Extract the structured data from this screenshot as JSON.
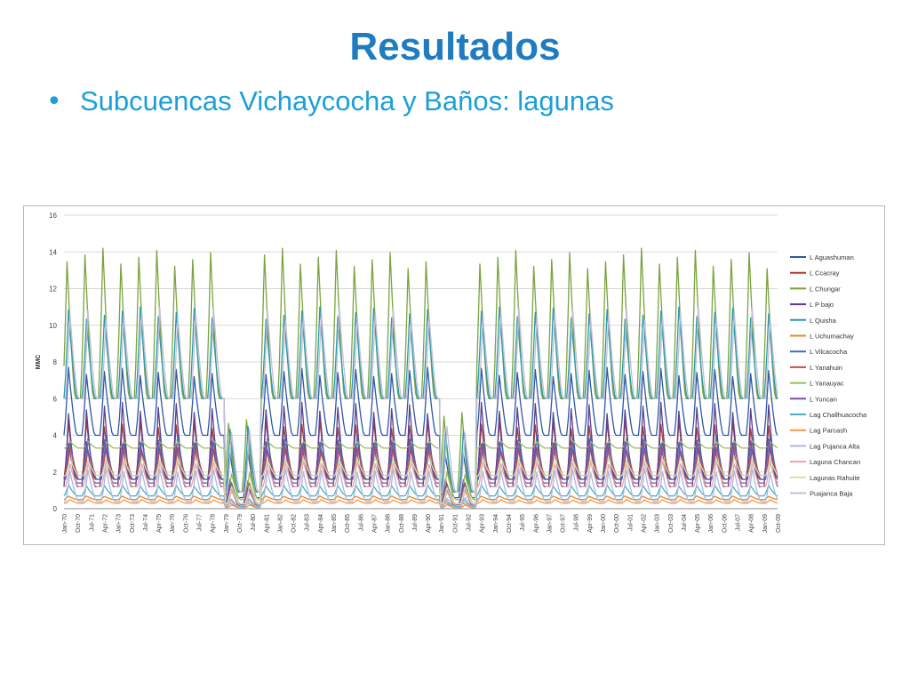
{
  "slide": {
    "title": "Resultados",
    "bullet": "Subcuencas Vichaycocha y Baños: lagunas"
  },
  "chart_data": {
    "type": "line",
    "ylabel": "MMC",
    "xlabel": "",
    "ylim": [
      0,
      16
    ],
    "yticks": [
      0,
      2,
      4,
      6,
      8,
      10,
      12,
      14,
      16
    ],
    "grid": true,
    "legend_position": "right",
    "x_start": "Jan-70",
    "x_end": "Oct-09",
    "xtick_labels": [
      "Jan-70",
      "Oct-70",
      "Jul-71",
      "Apr-72",
      "Jan-73",
      "Oct-73",
      "Jul-74",
      "Apr-75",
      "Jan-76",
      "Oct-76",
      "Jul-77",
      "Apr-78",
      "Jan-79",
      "Oct-79",
      "Jul-80",
      "Apr-81",
      "Jan-82",
      "Oct-82",
      "Jul-83",
      "Apr-84",
      "Jan-85",
      "Oct-85",
      "Jul-86",
      "Apr-87",
      "Jan-88",
      "Oct-88",
      "Jul-89",
      "Apr-90",
      "Jan-91",
      "Oct-91",
      "Jul-92",
      "Apr-93",
      "Jan-94",
      "Oct-94",
      "Jul-95",
      "Apr-96",
      "Jan-97",
      "Oct-97",
      "Jul-98",
      "Apr-99",
      "Jan-00",
      "Oct-00",
      "Jul-01",
      "Apr-02",
      "Jan-03",
      "Oct-03",
      "Jul-04",
      "Apr-05",
      "Jan-06",
      "Oct-06",
      "Jul-07",
      "Apr-08",
      "Jan-09",
      "Oct-09"
    ],
    "drought_years": [
      1979,
      1980,
      1991,
      1992
    ],
    "series": [
      {
        "name": "L Aguashuman",
        "color": "#2e57a8",
        "min": 4.0,
        "max": 7.7,
        "peak_month": 3
      },
      {
        "name": "L Ccacray",
        "color": "#b03a3a",
        "min": 1.6,
        "max": 4.8,
        "peak_month": 3
      },
      {
        "name": "L Chungar",
        "color": "#7aa33e",
        "min": 6.0,
        "max": 14.2,
        "peak_month": 2
      },
      {
        "name": "L P bajo",
        "color": "#5b3f8c",
        "min": 1.2,
        "max": 5.8,
        "peak_month": 3
      },
      {
        "name": "L Quisha",
        "color": "#2b9aa8",
        "min": 6.0,
        "max": 11.0,
        "peak_month": 3
      },
      {
        "name": "L Uchumachay",
        "color": "#e8862e",
        "min": 0.5,
        "max": 0.7,
        "peak_month": 3
      },
      {
        "name": "L Vilcacocha",
        "color": "#3a6fb8",
        "min": 1.6,
        "max": 4.0,
        "peak_month": 4
      },
      {
        "name": "L Yanahuin",
        "color": "#c0504d",
        "min": 1.8,
        "max": 3.4,
        "peak_month": 4
      },
      {
        "name": "L Yanauyac",
        "color": "#9bbb59",
        "min": 3.3,
        "max": 3.7,
        "peak_month": 4
      },
      {
        "name": "L Yuncan",
        "color": "#7a4fa8",
        "min": 1.4,
        "max": 3.8,
        "peak_month": 3
      },
      {
        "name": "Lag Challhuacocha",
        "color": "#4bacc6",
        "min": 0.7,
        "max": 1.3,
        "peak_month": 3
      },
      {
        "name": "Lag Parcash",
        "color": "#f79646",
        "min": 0.3,
        "max": 0.5,
        "peak_month": 4
      },
      {
        "name": "Lag Pujanca Alta",
        "color": "#a9b9e0",
        "min": 0.4,
        "max": 2.2,
        "peak_month": 4
      },
      {
        "name": "Laguna Chancan",
        "color": "#e6a8a8",
        "min": 1.2,
        "max": 2.6,
        "peak_month": 4
      },
      {
        "name": "Lagunas Rahuite",
        "color": "#cfe3a8",
        "min": 1.8,
        "max": 2.8,
        "peak_month": 4
      },
      {
        "name": "Puajanca Baja",
        "color": "#c4bdd6",
        "min": 6.0,
        "max": 11.0,
        "peak_month": 4
      }
    ]
  }
}
